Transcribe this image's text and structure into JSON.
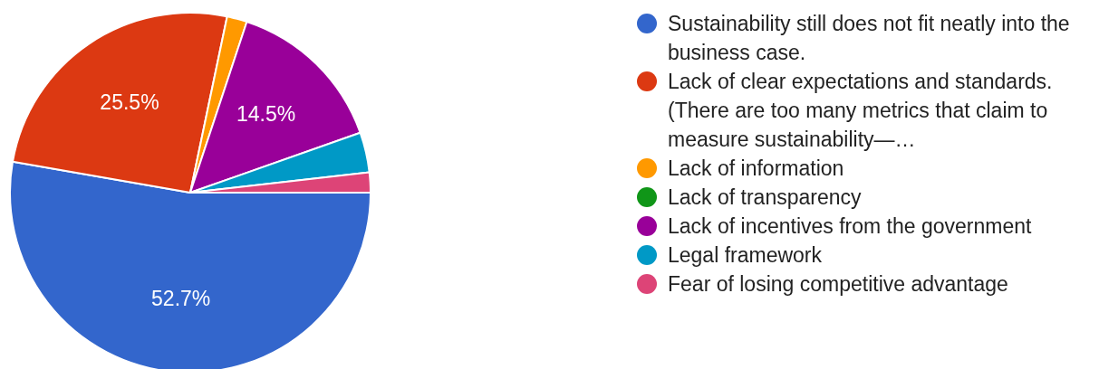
{
  "chart_data": {
    "type": "pie",
    "categories": [
      "Sustainability still does not fit neatly into the business case.",
      "Lack of clear expectations and standards. (There are too many metrics that claim to measure sustainability—…",
      "Lack of information",
      "Lack of transparency",
      "Lack of incentives from the government",
      "Legal framework",
      "Fear of losing competitive advantage"
    ],
    "values": [
      52.7,
      25.5,
      1.8,
      0,
      14.5,
      3.6,
      1.8
    ],
    "colors": [
      "#3366cc",
      "#dc3912",
      "#ff9900",
      "#109618",
      "#990099",
      "#0099c6",
      "#dd4477"
    ],
    "value_labels": [
      "52.7%",
      "25.5%",
      null,
      null,
      "14.5%",
      null,
      null
    ],
    "legend": "right"
  }
}
